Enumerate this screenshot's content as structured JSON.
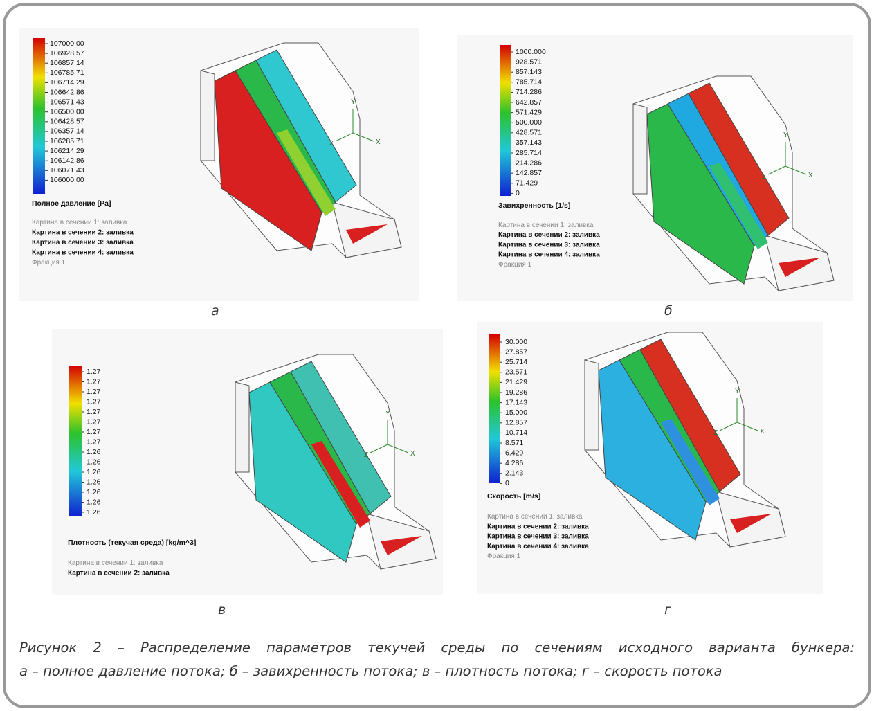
{
  "panels": [
    {
      "letter": "а",
      "scale": {
        "labels": [
          "107000.00",
          "106928.57",
          "106857.14",
          "106785.71",
          "106714.29",
          "106642.86",
          "106571.43",
          "106500.00",
          "106428.57",
          "106357.14",
          "106285.71",
          "106214.29",
          "106142.86",
          "106071.43",
          "106000.00"
        ],
        "title": "Полное давление [Pa]"
      },
      "notes": [
        "Картина в сечении 1: заливка",
        "Картина в сечении 2: заливка",
        "Картина в сечении 3: заливка",
        "Картина в сечении 4: заливка",
        "Фракция 1"
      ]
    },
    {
      "letter": "б",
      "scale": {
        "labels": [
          "1000.000",
          "928.571",
          "857.143",
          "785.714",
          "714.286",
          "642.857",
          "571.429",
          "500.000",
          "428.571",
          "357.143",
          "285.714",
          "214.286",
          "142.857",
          "71.429",
          "0"
        ],
        "title": "Завихренность [1/s]"
      },
      "notes": [
        "Картина в сечении 1: заливка",
        "Картина в сечении 2: заливка",
        "Картина в сечении 3: заливка",
        "Картина в сечении 4: заливка",
        "Фракция 1"
      ]
    },
    {
      "letter": "в",
      "scale": {
        "labels": [
          "1.27",
          "1.27",
          "1.27",
          "1.27",
          "1.27",
          "1.27",
          "1.27",
          "1.27",
          "1.26",
          "1.26",
          "1.26",
          "1.26",
          "1.26",
          "1.26",
          "1.26"
        ],
        "title": "Плотность (текучая среда) [kg/m^3]"
      },
      "notes": [
        "Картина в сечении 1: заливка",
        "Картина в сечении 2: заливка"
      ]
    },
    {
      "letter": "г",
      "scale": {
        "labels": [
          "30.000",
          "27.857",
          "25.714",
          "23.571",
          "21.429",
          "19.286",
          "17.143",
          "15.000",
          "12.857",
          "10.714",
          "8.571",
          "6.429",
          "4.286",
          "2.143",
          "0"
        ],
        "title": "Скорость [m/s]"
      },
      "notes": [
        "Картина в сечении 1: заливка",
        "Картина в сечении 2: заливка",
        "Картина в сечении 3: заливка",
        "Картина в сечении 4: заливка",
        "Фракция 1"
      ]
    }
  ],
  "triad": [
    "Y",
    "X",
    "Z"
  ],
  "caption": [
    "Рисунок 2 – Распределение параметров текучей среды по сечениям исходного варианта бункера:",
    "а – полное давление потока; б – завихренность потока; в – плотность потока; г – скорость потока"
  ]
}
